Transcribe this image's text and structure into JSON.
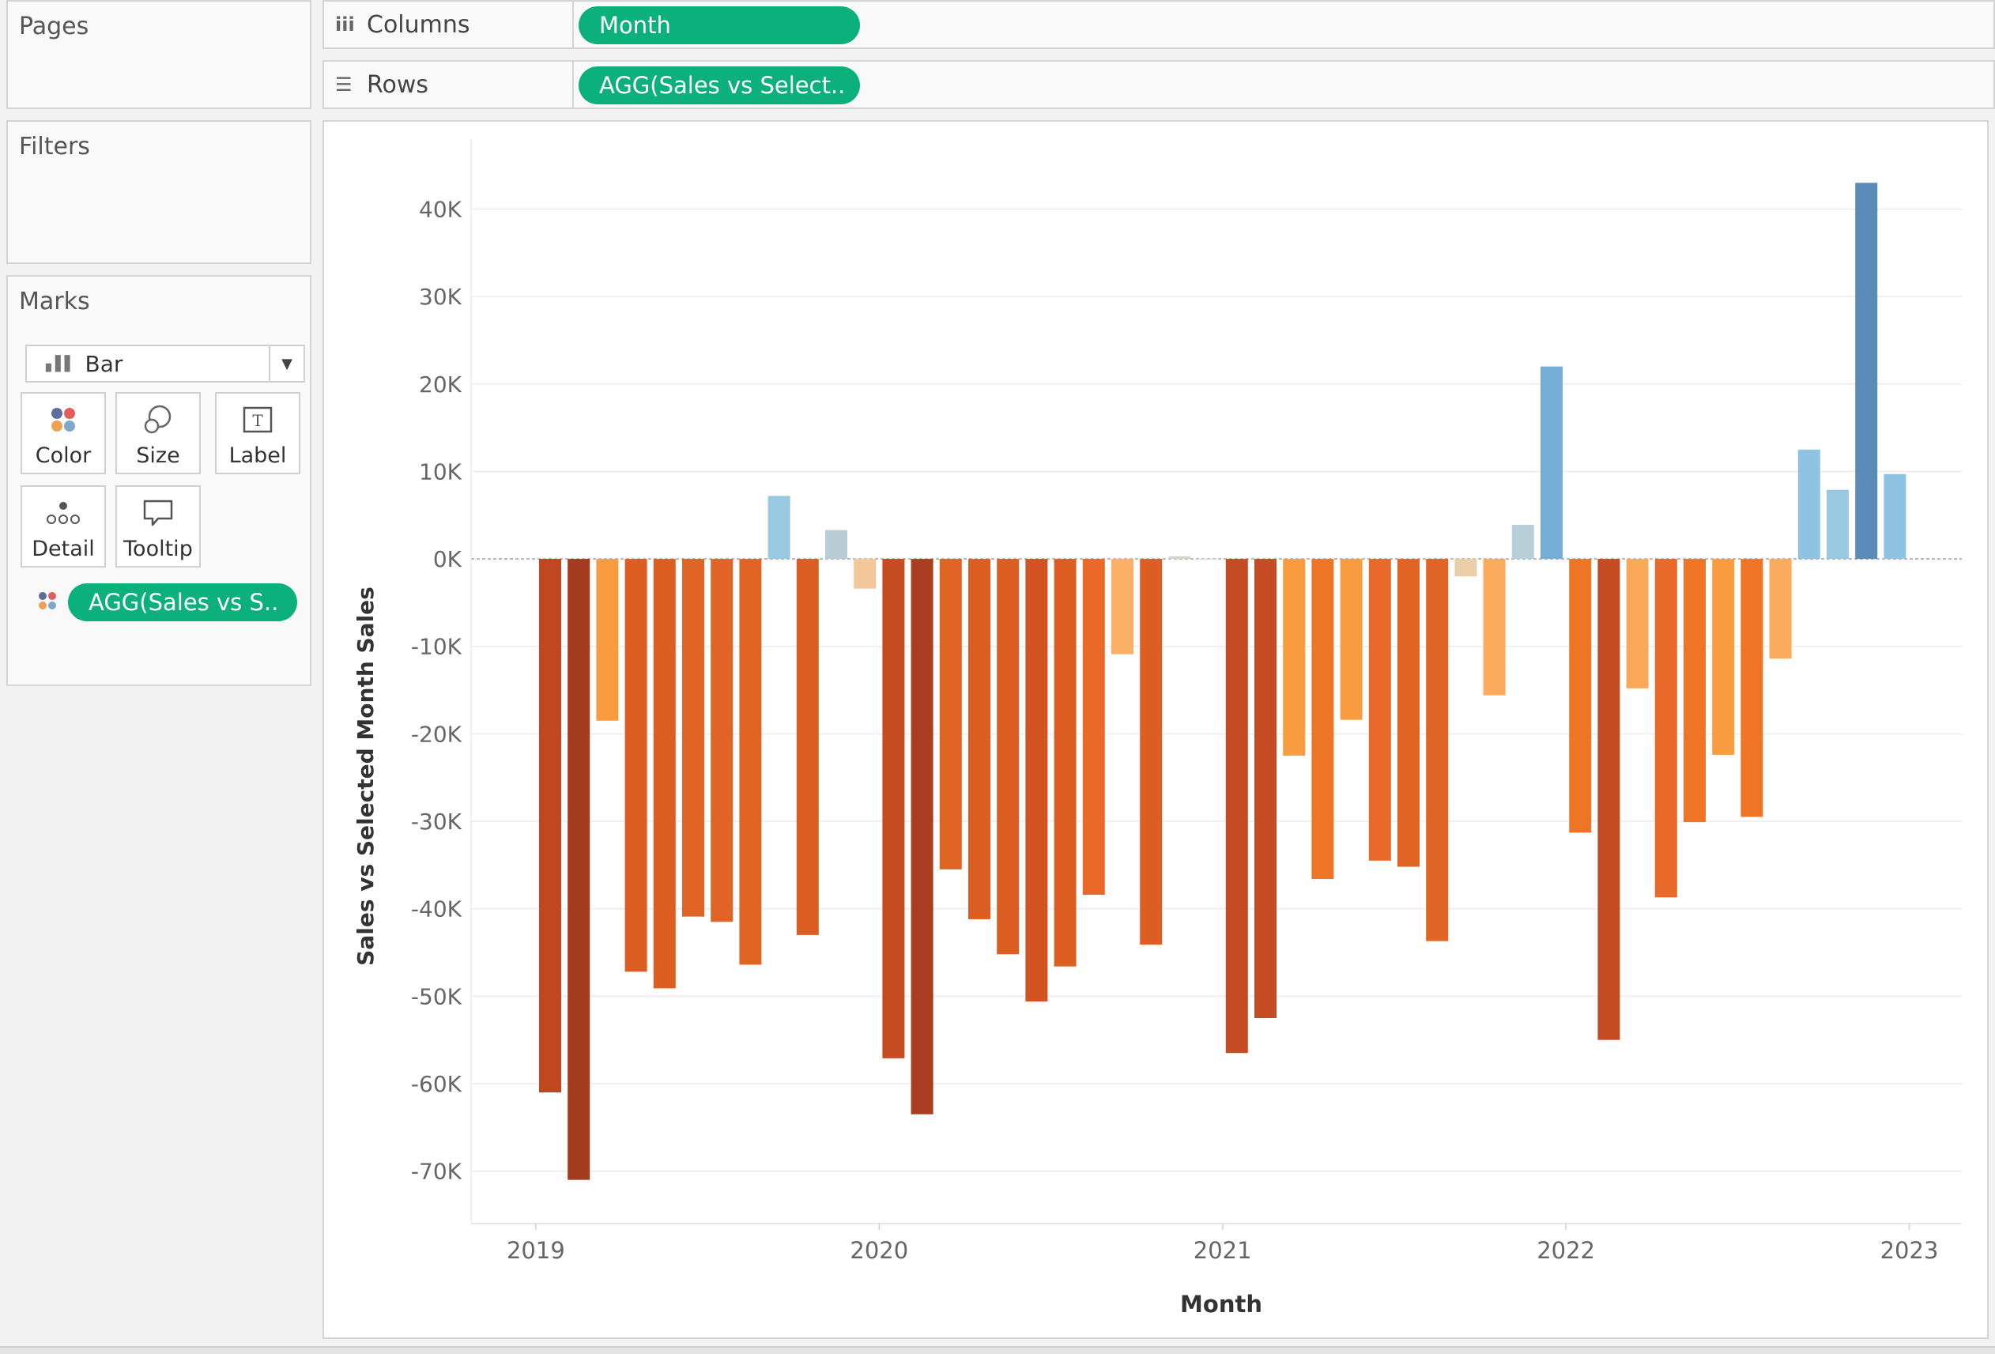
{
  "pages_title": "Pages",
  "filters_title": "Filters",
  "marks": {
    "title": "Marks",
    "type": "Bar",
    "buttons": [
      "Color",
      "Size",
      "Label",
      "Detail",
      "Tooltip"
    ],
    "color_pill": "AGG(Sales vs S.."
  },
  "columns": {
    "label": "Columns",
    "pill": "Month"
  },
  "rows": {
    "label": "Rows",
    "pill": "AGG(Sales vs Select.."
  },
  "chart_data": {
    "type": "bar",
    "title": "",
    "xlabel": "Month",
    "ylabel": "Sales vs Selected Month Sales",
    "ylim": [
      -76000,
      48000
    ],
    "y_ticks": [
      40000,
      30000,
      20000,
      10000,
      0,
      -10000,
      -20000,
      -30000,
      -40000,
      -50000,
      -60000,
      -70000
    ],
    "y_tick_labels": [
      "40K",
      "30K",
      "20K",
      "10K",
      "0K",
      "-10K",
      "-20K",
      "-30K",
      "-40K",
      "-50K",
      "-60K",
      "-70K"
    ],
    "x_tick_labels": [
      "2019",
      "2020",
      "2021",
      "2022",
      "2023"
    ],
    "grid": "horizontal",
    "categories": [
      "Jan 2019",
      "Feb 2019",
      "Mar 2019",
      "Apr 2019",
      "May 2019",
      "Jun 2019",
      "Jul 2019",
      "Aug 2019",
      "Sep 2019",
      "Oct 2019",
      "Nov 2019",
      "Dec 2019",
      "Jan 2020",
      "Feb 2020",
      "Mar 2020",
      "Apr 2020",
      "May 2020",
      "Jun 2020",
      "Jul 2020",
      "Aug 2020",
      "Sep 2020",
      "Oct 2020",
      "Nov 2020",
      "Dec 2020",
      "Jan 2021",
      "Feb 2021",
      "Mar 2021",
      "Apr 2021",
      "May 2021",
      "Jun 2021",
      "Jul 2021",
      "Aug 2021",
      "Sep 2021",
      "Oct 2021",
      "Nov 2021",
      "Dec 2021",
      "Jan 2022",
      "Feb 2022",
      "Mar 2022",
      "Apr 2022",
      "May 2022",
      "Jun 2022",
      "Jul 2022",
      "Aug 2022",
      "Sep 2022",
      "Oct 2022",
      "Nov 2022",
      "Dec 2022"
    ],
    "values": [
      -61000,
      -71000,
      -18500,
      -47200,
      -49100,
      -40900,
      -41500,
      -46400,
      7200,
      -43000,
      3300,
      -3400,
      -57100,
      -63500,
      -35500,
      -41200,
      -45200,
      -50600,
      -46600,
      -38400,
      -10900,
      -44100,
      300,
      -100,
      -56500,
      -52500,
      -22500,
      -36600,
      -18400,
      -34500,
      -35200,
      -43700,
      -2000,
      -15600,
      3900,
      22000,
      -31300,
      -55000,
      -14800,
      -38700,
      -30100,
      -22400,
      -29500,
      -11400,
      12500,
      7900,
      43000,
      9700
    ],
    "colors": [
      "#bf4722",
      "#a33b1e",
      "#f89c3f",
      "#dc5e22",
      "#dc5e22",
      "#e06525",
      "#e06525",
      "#e06525",
      "#99c9e0",
      "#dc5e22",
      "#b9cdd6",
      "#f2c799",
      "#c44b22",
      "#a83d1f",
      "#e06525",
      "#dc5e22",
      "#dc5e22",
      "#d35222",
      "#dc5e22",
      "#e8692a",
      "#fbb065",
      "#dc5e22",
      "#d6d2cc",
      "#e2e0dc",
      "#c44b22",
      "#c44b22",
      "#f89c3f",
      "#ef7526",
      "#f89c3f",
      "#e8692a",
      "#e06525",
      "#e06525",
      "#e9cea9",
      "#fbab5b",
      "#b9cfd8",
      "#74aed6",
      "#ef7526",
      "#c44b22",
      "#fba958",
      "#e8692a",
      "#ef7526",
      "#f89c3f",
      "#ef7526",
      "#fbab5b",
      "#8ec4e2",
      "#99c9e0",
      "#5a8ab8",
      "#8ec4e2"
    ]
  }
}
